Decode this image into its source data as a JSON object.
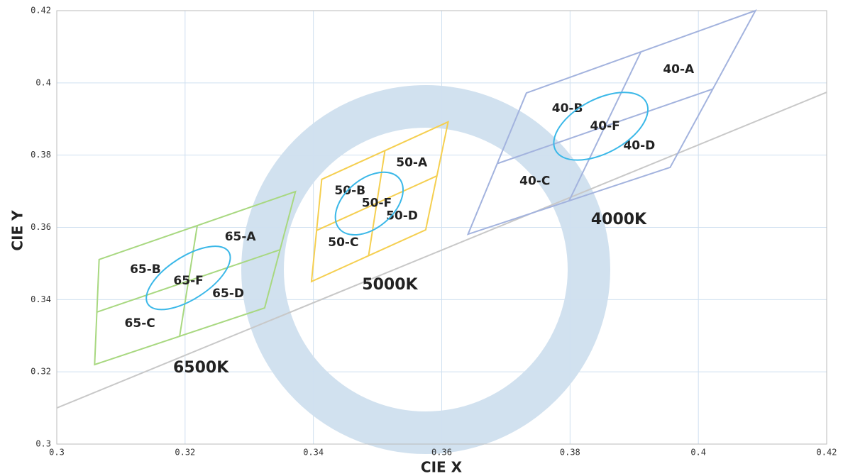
{
  "chart_data": {
    "type": "polygon",
    "xlabel": "CIE X",
    "ylabel": "CIE Y",
    "xlim": [
      0.3,
      0.42
    ],
    "ylim": [
      0.3,
      0.42
    ],
    "xticks": [
      0.3,
      0.32,
      0.34,
      0.36,
      0.38,
      0.4,
      0.42
    ],
    "yticks": [
      0.3,
      0.32,
      0.34,
      0.36,
      0.38,
      0.4,
      0.42
    ],
    "grid": true,
    "locus": {
      "color": "#c8c8c8",
      "x": [
        0.3,
        0.42
      ],
      "y": [
        0.31,
        0.3974
      ]
    },
    "regions": [
      {
        "name": "6500K",
        "color": "#a8d880",
        "line_color": "#5aa53a",
        "x": [
          0.3372,
          0.3066,
          0.3059,
          0.3324
        ],
        "y": [
          0.3699,
          0.3511,
          0.322,
          0.3377
        ],
        "quad_labels": [
          "65-A",
          "65-B",
          "65-C",
          "65-D"
        ],
        "center_label": "65-F",
        "ellipse": {
          "color": "#3bb8e8",
          "x": 0.3205,
          "y": 0.346,
          "a": 0.0075,
          "b": 0.0033,
          "angle": -33
        }
      },
      {
        "name": "5000K",
        "color": "#f5cf50",
        "line_color": "#eebf30",
        "x": [
          0.361,
          0.3413,
          0.3397,
          0.3575
        ],
        "y": [
          0.3892,
          0.3733,
          0.345,
          0.3593
        ],
        "quad_labels": [
          "50-A",
          "50-B",
          "50-C",
          "50-D"
        ],
        "center_label": "50-F",
        "ellipse": {
          "color": "#3bb8e8",
          "x": 0.3487,
          "y": 0.3666,
          "a": 0.0061,
          "b": 0.0038,
          "angle": -40
        }
      },
      {
        "name": "4000K",
        "color": "#a3b3de",
        "line_color": "#6f84c4",
        "x": [
          0.4089,
          0.3732,
          0.3641,
          0.3956
        ],
        "y": [
          0.42,
          0.3972,
          0.3581,
          0.3766
        ],
        "quad_labels": [
          "40-A",
          "40-B",
          "40-C",
          "40-D"
        ],
        "center_label": "40-F",
        "ellipse": {
          "color": "#3bb8e8",
          "x": 0.3848,
          "y": 0.388,
          "a": 0.008,
          "b": 0.0042,
          "angle": -28
        }
      }
    ]
  }
}
